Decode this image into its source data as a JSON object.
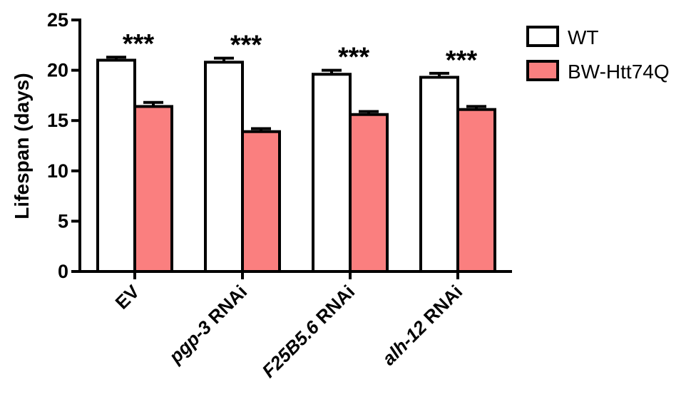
{
  "chart_data": {
    "type": "bar",
    "title": "",
    "xlabel": "",
    "ylabel": "Lifespan (days)",
    "ylim": [
      0,
      25
    ],
    "yticks": [
      0,
      5,
      10,
      15,
      20,
      25
    ],
    "grid": false,
    "legend_position": "top-right",
    "categories": [
      {
        "italic": "",
        "rest": "EV"
      },
      {
        "italic": "pgp-3",
        "rest": " RNAi"
      },
      {
        "italic": "F25B5.6",
        "rest": " RNAi"
      },
      {
        "italic": "alh-12",
        "rest": " RNAi"
      }
    ],
    "series": [
      {
        "name": "WT",
        "color": "#ffffff",
        "values": [
          21.0,
          20.8,
          19.6,
          19.3
        ],
        "errors": [
          0.3,
          0.4,
          0.4,
          0.4
        ]
      },
      {
        "name": "BW-Htt74Q",
        "color": "#fa7f7f",
        "values": [
          16.4,
          13.9,
          15.6,
          16.1
        ],
        "errors": [
          0.4,
          0.3,
          0.3,
          0.3
        ]
      }
    ],
    "annotations": [
      "***",
      "***",
      "***",
      "***"
    ]
  }
}
